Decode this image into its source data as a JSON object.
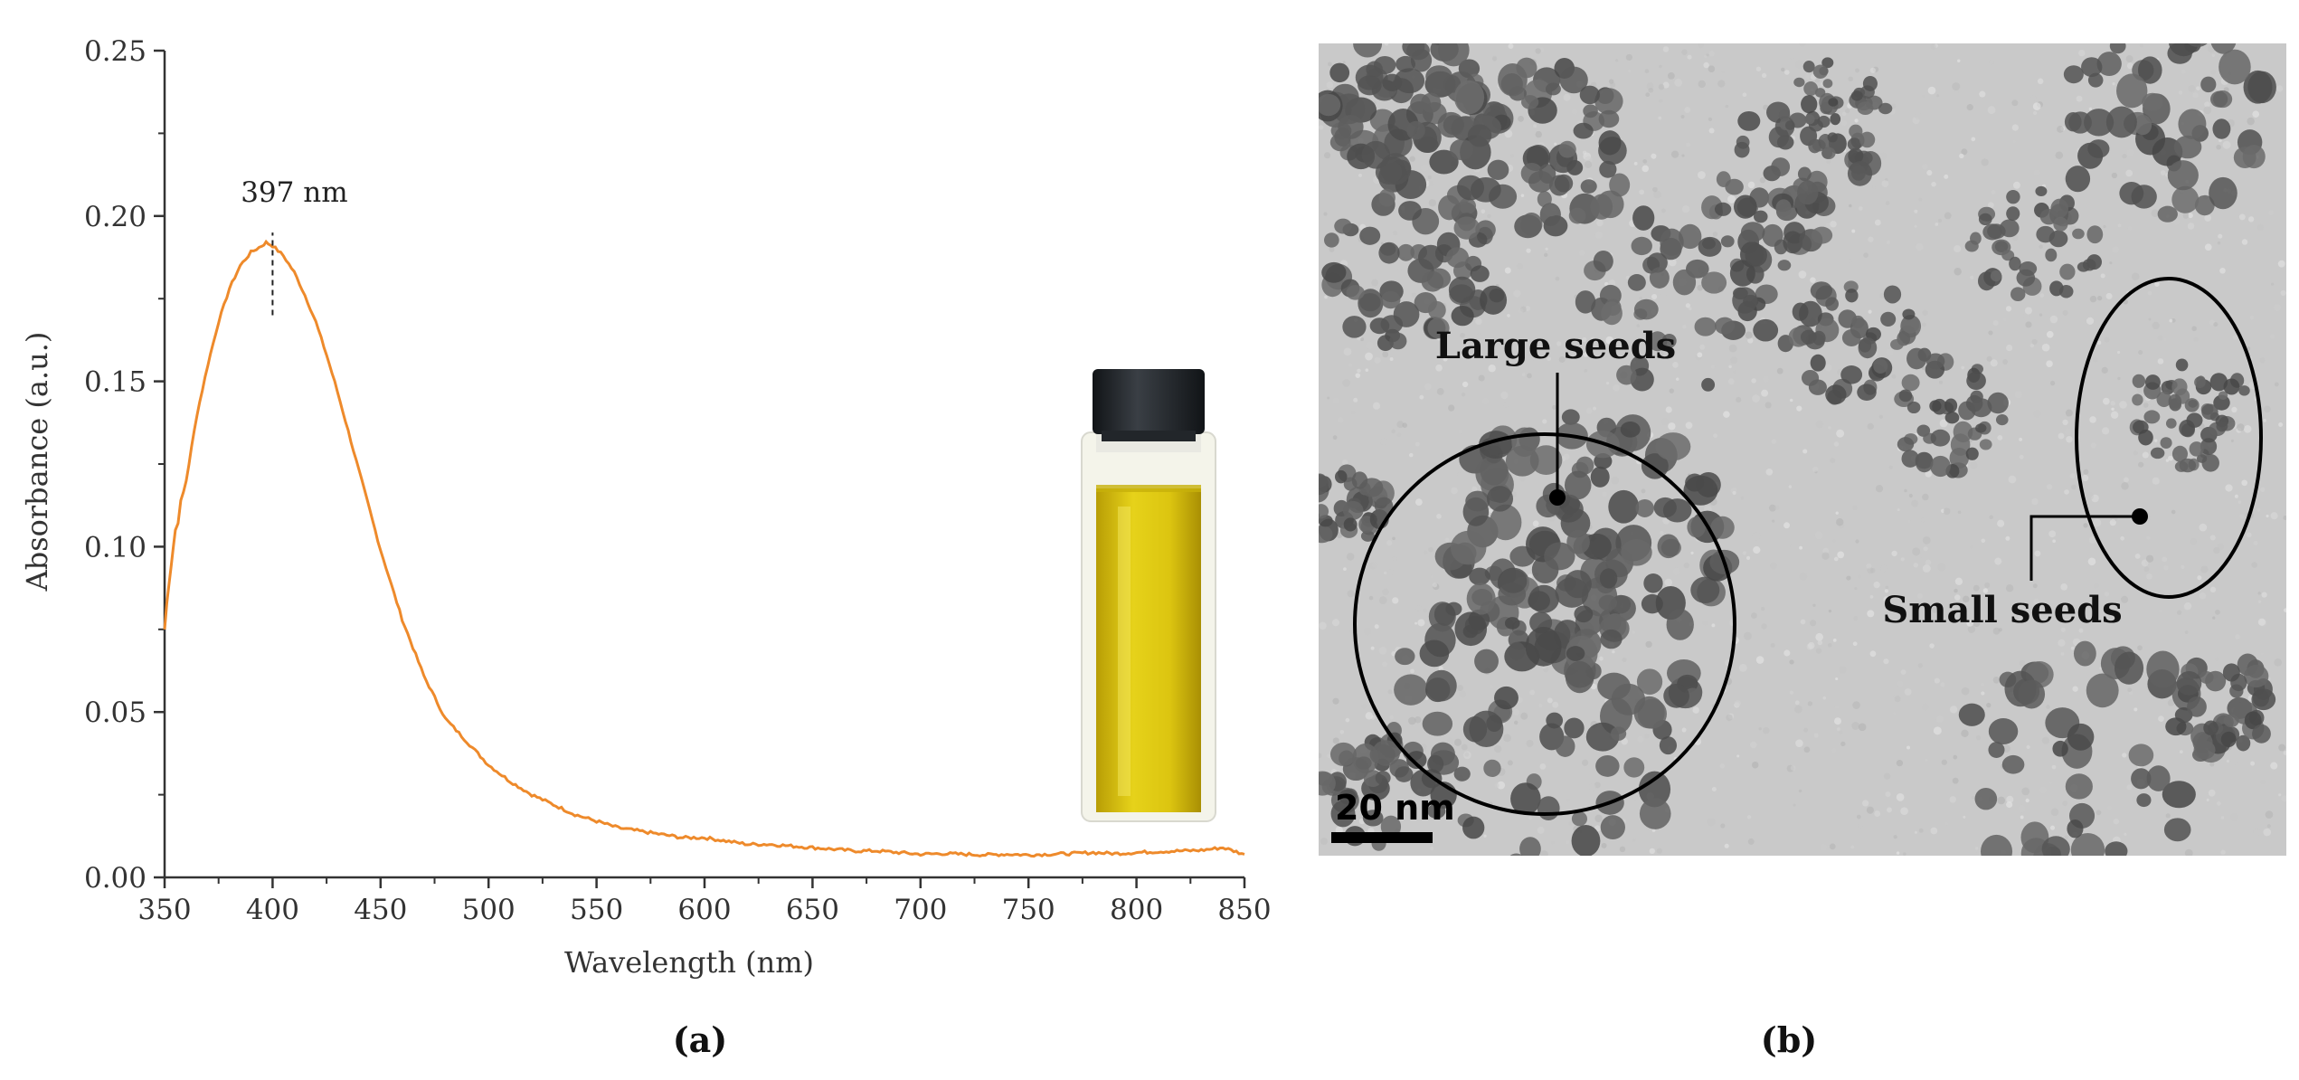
{
  "figure": {
    "panel_a_label": "(a)",
    "panel_b_label": "(b)"
  },
  "chart_data": {
    "type": "line",
    "title": "",
    "xlabel": "Wavelength (nm)",
    "ylabel": "Absorbance (a.u.)",
    "xlim": [
      350,
      850
    ],
    "ylim": [
      0,
      0.25
    ],
    "x_ticks": [
      350,
      400,
      450,
      500,
      550,
      600,
      650,
      700,
      750,
      800,
      850
    ],
    "y_ticks": [
      "0.00",
      "0.05",
      "0.10",
      "0.15",
      "0.20",
      "0.25"
    ],
    "grid": false,
    "legend": "none",
    "series": [
      {
        "color": "#ee8a2b",
        "x": [
          350,
          352,
          355,
          360,
          365,
          370,
          375,
          380,
          385,
          390,
          395,
          397,
          400,
          405,
          410,
          415,
          420,
          425,
          430,
          440,
          450,
          460,
          470,
          480,
          490,
          500,
          510,
          520,
          530,
          540,
          550,
          560,
          570,
          580,
          590,
          600,
          610,
          620,
          630,
          640,
          650,
          660,
          670,
          680,
          690,
          700,
          710,
          720,
          730,
          740,
          750,
          760,
          770,
          780,
          790,
          800,
          810,
          820,
          830,
          840,
          850
        ],
        "y": [
          0.075,
          0.09,
          0.105,
          0.12,
          0.14,
          0.155,
          0.168,
          0.178,
          0.185,
          0.189,
          0.191,
          0.192,
          0.191,
          0.188,
          0.183,
          0.176,
          0.168,
          0.158,
          0.147,
          0.123,
          0.099,
          0.078,
          0.061,
          0.048,
          0.041,
          0.034,
          0.029,
          0.025,
          0.022,
          0.019,
          0.017,
          0.015,
          0.014,
          0.013,
          0.012,
          0.012,
          0.011,
          0.01,
          0.01,
          0.0095,
          0.009,
          0.0085,
          0.008,
          0.008,
          0.0075,
          0.007,
          0.0072,
          0.007,
          0.0068,
          0.007,
          0.0068,
          0.007,
          0.0072,
          0.0075,
          0.0072,
          0.0075,
          0.0078,
          0.008,
          0.0082,
          0.009,
          0.007
        ]
      }
    ],
    "annotations": [
      {
        "text": "397 nm",
        "x": 400,
        "y_from": 0.17,
        "y_to": 0.195
      }
    ]
  },
  "vial": {
    "cap_color": "#1e2226",
    "liquid_color": "#d9c20a",
    "glass_color": "#f4f4ea"
  },
  "tem": {
    "background_color": "#c9c9c9",
    "particle_color": "#5a5a5a",
    "large_label": "Large seeds",
    "small_label": "Small seeds",
    "scale_label": "20 nm"
  }
}
